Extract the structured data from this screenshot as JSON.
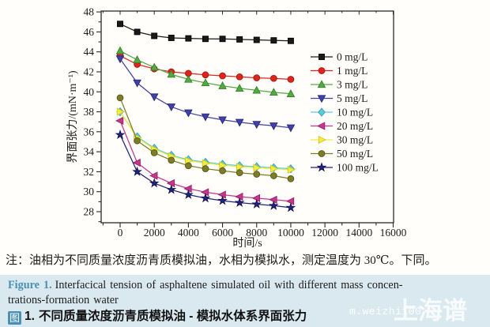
{
  "chart_data": {
    "type": "line",
    "title": "",
    "xlabel": "时间/s",
    "ylabel": "界面张力/(mN·m⁻¹)",
    "xlim": [
      -1100,
      16000
    ],
    "ylim": [
      26.9,
      48.1
    ],
    "x_major_ticks": [
      0,
      2000,
      4000,
      6000,
      8000,
      10000,
      12000,
      14000,
      16000
    ],
    "x_minor_step": 1000,
    "y_major_ticks": [
      28,
      30,
      32,
      34,
      36,
      38,
      40,
      42,
      44,
      46,
      48
    ],
    "y_minor_step": 1,
    "grid": false,
    "legend_position": "inside-right",
    "x": [
      0,
      1000,
      2000,
      3000,
      4000,
      5000,
      6000,
      7000,
      8000,
      9000,
      10000
    ],
    "series": [
      {
        "name": "0 mg/L",
        "marker": "square",
        "color": "#1a1a1a",
        "edge": "#000000",
        "values": [
          46.8,
          46.0,
          45.6,
          45.4,
          45.35,
          45.3,
          45.3,
          45.25,
          45.2,
          45.15,
          45.1
        ]
      },
      {
        "name": "1 mg/L",
        "marker": "circle",
        "color": "#e0241c",
        "edge": "#a51510",
        "values": [
          43.6,
          42.75,
          42.3,
          42.0,
          41.85,
          41.7,
          41.6,
          41.5,
          41.4,
          41.35,
          41.25
        ]
      },
      {
        "name": "3 mg/L",
        "marker": "triangle-up",
        "color": "#56a845",
        "edge": "#35832a",
        "values": [
          44.1,
          43.2,
          42.45,
          41.75,
          41.25,
          40.9,
          40.6,
          40.35,
          40.15,
          39.95,
          39.8
        ]
      },
      {
        "name": "5 mg/L",
        "marker": "triangle-down",
        "color": "#4242a6",
        "edge": "#26267e",
        "values": [
          43.3,
          40.9,
          39.5,
          38.5,
          37.9,
          37.5,
          37.2,
          36.95,
          36.75,
          36.6,
          36.4
        ]
      },
      {
        "name": "10 mg/L",
        "marker": "diamond",
        "color": "#5fc9d9",
        "edge": "#2fa0b5",
        "values": [
          38.0,
          35.5,
          34.35,
          33.65,
          33.2,
          32.95,
          32.75,
          32.6,
          32.5,
          32.4,
          32.3
        ]
      },
      {
        "name": "20 mg/L",
        "marker": "triangle-left",
        "color": "#c5378f",
        "edge": "#99215f",
        "values": [
          37.1,
          32.9,
          31.6,
          30.85,
          30.3,
          29.95,
          29.7,
          29.5,
          29.35,
          29.2,
          29.05
        ]
      },
      {
        "name": "30 mg/L",
        "marker": "triangle-right",
        "color": "#f2ee3e",
        "edge": "#cfc52a",
        "values": [
          38.0,
          35.4,
          34.25,
          33.55,
          33.1,
          32.85,
          32.65,
          32.5,
          32.4,
          32.3,
          32.2
        ]
      },
      {
        "name": "50 mg/L",
        "marker": "circle",
        "color": "#7d7d28",
        "edge": "#55551a",
        "values": [
          39.4,
          35.1,
          33.9,
          33.15,
          32.6,
          32.3,
          32.1,
          31.9,
          31.75,
          31.6,
          31.3
        ]
      },
      {
        "name": "100 mg/L",
        "marker": "star",
        "color": "#232377",
        "edge": "#131356",
        "values": [
          35.7,
          32.0,
          30.85,
          30.2,
          29.7,
          29.35,
          29.1,
          28.9,
          28.75,
          28.6,
          28.4
        ]
      }
    ]
  },
  "note": "注：油相为不同质量浓度沥青质模拟油，水相为模拟水，测定温度为 30℃。下同。",
  "caption": {
    "figure_label_en": "Figure 1.",
    "caption_en_line1": "Interfacical tension of asphaltene simulated oil with different mass concen-",
    "caption_en_line2": "trations-formation water",
    "figure_label_zh": "图",
    "figure_number_zh": "1.",
    "caption_zh": "不同质量浓度沥青质模拟油 - 模拟水体系界面张力"
  },
  "watermark": {
    "small": "m.weizhi100",
    "large": "上海谱"
  },
  "colors": {
    "accent_blue": "#4a8fb5",
    "band_bg": "#d9e9ef",
    "axis": "#2b2b2b",
    "text": "#1c1c1c"
  }
}
